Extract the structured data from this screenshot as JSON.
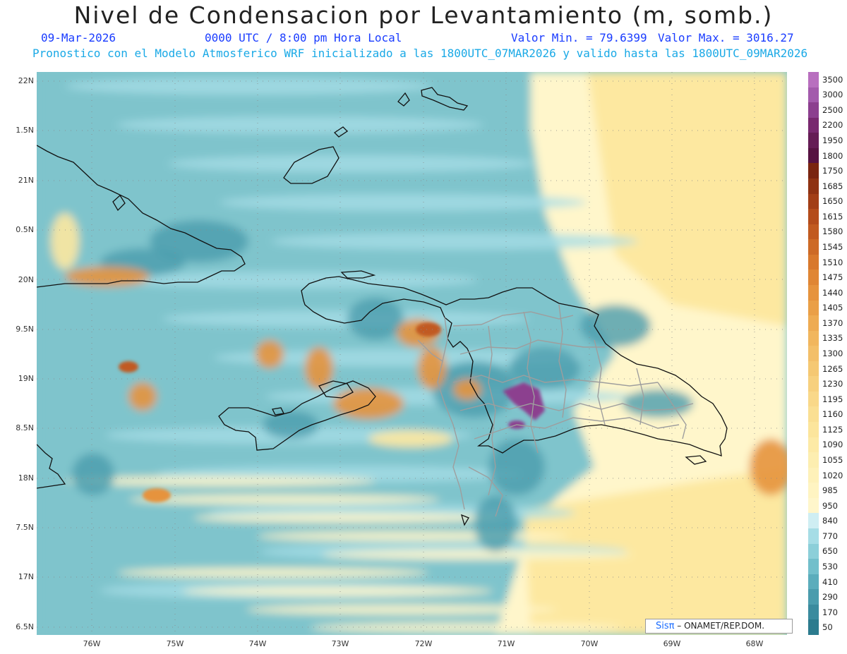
{
  "header": {
    "title": "Nivel de Condensacion por Levantamiento (m, somb.)",
    "date": "09-Mar-2026",
    "time": "0000 UTC / 8:00 pm Hora Local",
    "valmin": "Valor Min. = 79.6399",
    "valmax": "Valor Max. = 3016.27",
    "forecast": "Pronostico con el Modelo Atmosferico WRF inicializado a las 1800UTC_07MAR2026 y valido hasta las  1800UTC_09MAR2026"
  },
  "axes": {
    "lat_labels": [
      "22N",
      "1.5N",
      "21N",
      "0.5N",
      "20N",
      "9.5N",
      "19N",
      "8.5N",
      "18N",
      "7.5N",
      "17N",
      "6.5N"
    ],
    "lon_labels": [
      "76W",
      "75W",
      "74W",
      "73W",
      "72W",
      "71W",
      "70W",
      "69W",
      "68W"
    ]
  },
  "legend": {
    "labels": [
      "3500",
      "3000",
      "2500",
      "2200",
      "1950",
      "1800",
      "1750",
      "1685",
      "1650",
      "1615",
      "1580",
      "1545",
      "1510",
      "1475",
      "1440",
      "1405",
      "1370",
      "1335",
      "1300",
      "1265",
      "1230",
      "1195",
      "1160",
      "1125",
      "1090",
      "1055",
      "1020",
      "985",
      "950",
      "840",
      "770",
      "650",
      "530",
      "410",
      "290",
      "170",
      "50"
    ],
    "colors": [
      "#b86fbf",
      "#a35aac",
      "#8c3f8f",
      "#78286f",
      "#651c55",
      "#561241",
      "#7a2510",
      "#8f3212",
      "#a23e16",
      "#b44c1b",
      "#c15a20",
      "#cd6a26",
      "#d8782c",
      "#e08634",
      "#e6933d",
      "#ea9f47",
      "#eeab52",
      "#f1b65e",
      "#f3bf69",
      "#f5c873",
      "#f7d07e",
      "#f9d889",
      "#fadf93",
      "#fce59c",
      "#fdeaa6",
      "#fdeeb0",
      "#fef1b9",
      "#fff4c2",
      "#fff6cb",
      "#cfeef3",
      "#a6dde6",
      "#8ccfd9",
      "#72bfcb",
      "#5badbc",
      "#4a9cad",
      "#3a8b9e",
      "#2c7b8e"
    ]
  },
  "credit": {
    "logo": "Sisπ",
    "text": "– ONAMET/REP.DOM."
  },
  "map_colors": {
    "ocean_base": "#7fc4cc",
    "ocean_light": "#a6dde6",
    "ocean_pale": "#cfeef3",
    "ocean_dark": "#4a9cad",
    "yellow_pale": "#fff6cb",
    "yellow": "#fde8a0",
    "orange": "#e6933d",
    "orange_dark": "#c15a20",
    "purple": "#8c3f8f",
    "coast": "#111111",
    "border": "#a0a0a0"
  }
}
